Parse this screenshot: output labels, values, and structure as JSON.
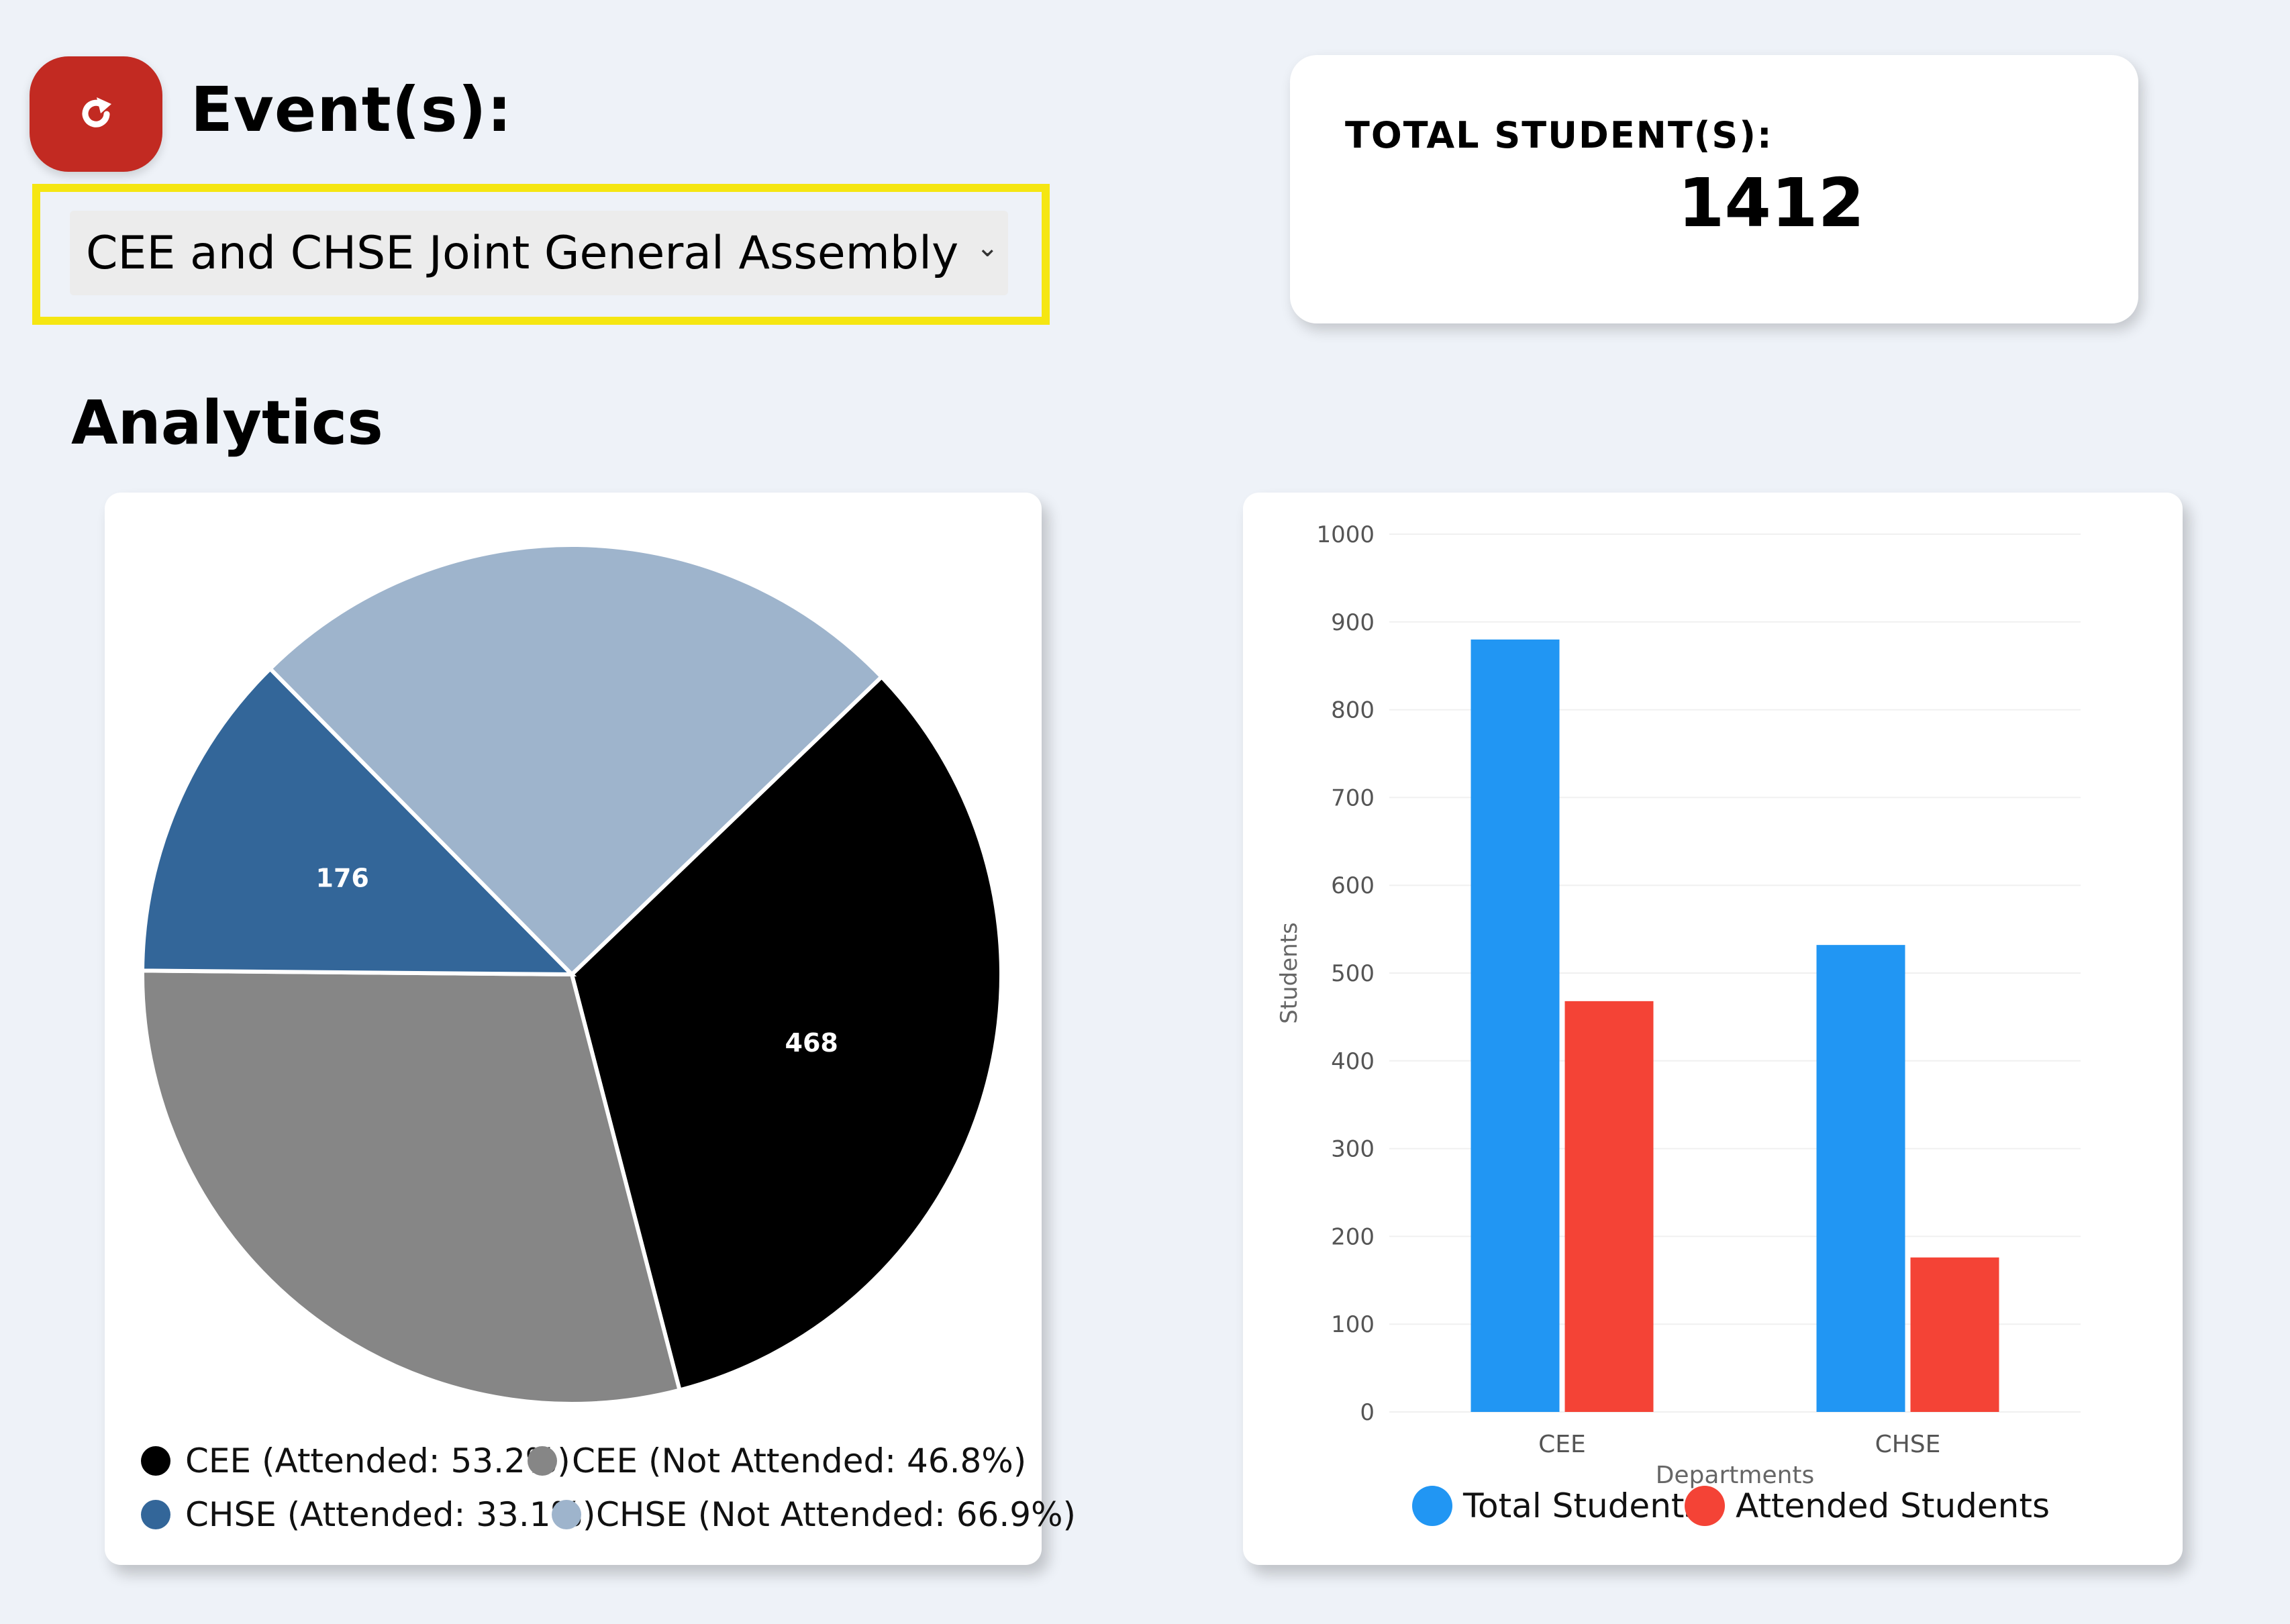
{
  "header": {
    "refresh_icon": "refresh-icon",
    "events_label": "Event(s):",
    "event_select": {
      "selected": "CEE and CHSE Joint General Assembly",
      "caret_icon": "chevron-down-icon"
    },
    "analytics_title": "Analytics"
  },
  "total_card": {
    "label": "TOTAL STUDENT(S):",
    "value": "1412"
  },
  "colors": {
    "refresh_button": "#c22a22",
    "select_highlight": "#f5e612",
    "cee_attended": "#000000",
    "cee_not_attended": "#868686",
    "chse_attended": "#336699",
    "chse_not_attended": "#9eb4cc",
    "total_students": "#2196f3",
    "attended_students": "#f44336"
  },
  "chart_data": [
    {
      "type": "pie",
      "slices": [
        {
          "label": "CEE (Attended: 53.2%)",
          "value": 468,
          "color": "#000000"
        },
        {
          "label": "CEE (Not Attended: 46.8%)",
          "value": 412,
          "color": "#868686"
        },
        {
          "label": "CHSE (Attended: 33.1%)",
          "value": 176,
          "color": "#336699"
        },
        {
          "label": "CHSE (Not Attended: 66.9%)",
          "value": 356,
          "color": "#9eb4cc"
        }
      ],
      "data_labels": [
        "468",
        "176"
      ],
      "legend": "bottom"
    },
    {
      "type": "bar",
      "categories": [
        "CEE",
        "CHSE"
      ],
      "series": [
        {
          "name": "Total Students",
          "values": [
            880,
            532
          ],
          "color": "#2196f3"
        },
        {
          "name": "Attended Students",
          "values": [
            468,
            176
          ],
          "color": "#f44336"
        }
      ],
      "xlabel": "Departments",
      "ylabel": "Students",
      "ylim": [
        0,
        1000
      ],
      "yticks": [
        "0",
        "100",
        "200",
        "300",
        "400",
        "500",
        "600",
        "700",
        "800",
        "900",
        "1000"
      ],
      "grid": true,
      "legend": "bottom"
    }
  ]
}
